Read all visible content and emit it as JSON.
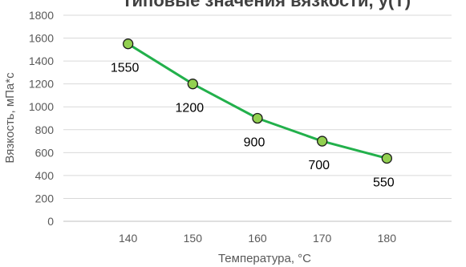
{
  "chart_data": {
    "type": "line",
    "title": "Типовые значения вязкости, y(T)",
    "xlabel": "Температура, °C",
    "ylabel": "Вязкость, мПа*с",
    "x": [
      140,
      150,
      160,
      170,
      180
    ],
    "series": [
      {
        "values": [
          1550,
          1200,
          900,
          700,
          550
        ]
      }
    ],
    "data_labels": [
      "1550",
      "1200",
      "900",
      "700",
      "550"
    ],
    "x_ticks": [
      "140",
      "150",
      "160",
      "170",
      "180"
    ],
    "y_ticks": [
      "0",
      "200",
      "400",
      "600",
      "800",
      "1000",
      "1200",
      "1400",
      "1600",
      "1800"
    ],
    "xlim": [
      130,
      190
    ],
    "ylim": [
      0,
      1800
    ],
    "grid": true,
    "legend": "none",
    "colors": {
      "line": "#22b04b",
      "marker_fill": "#92d050",
      "marker_stroke": "#1a1a1a",
      "grid": "#d9d9d9"
    }
  }
}
